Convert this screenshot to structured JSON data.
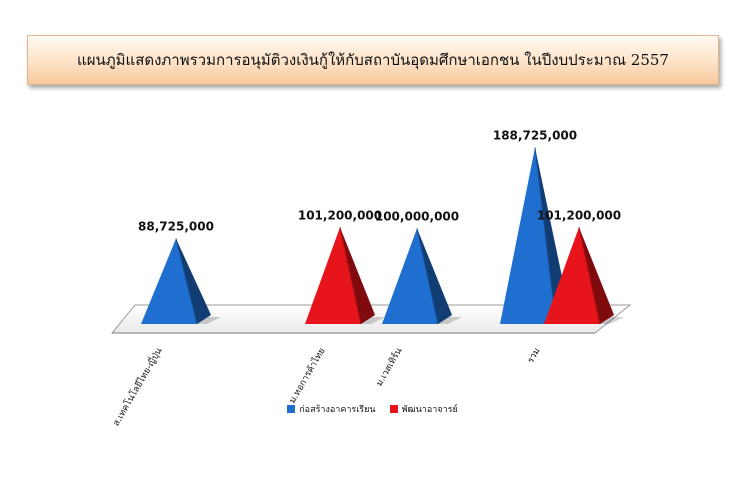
{
  "chart_data": {
    "type": "bar",
    "style": "3d-pyramid",
    "title": "แผนภูมิแสดงภาพรวมการอนุมัติวงเงินกู้ให้กับสถาบันอุดมศึกษาเอกชน ในปีงบประมาณ 2557",
    "categories": [
      "ส.เทคโนโลยีไทย-ญี่ปุ่น",
      "ม.หอการค้าไทย",
      "ม.เวสเทิร์น",
      "รวม"
    ],
    "series": [
      {
        "name": "ก่อสร้างอาคารเรียน",
        "color": "#1f6fd0",
        "values": [
          88725000,
          null,
          100000000,
          188725000
        ],
        "labels": [
          "88,725,000",
          "",
          "100,000,000",
          "188,725,000"
        ]
      },
      {
        "name": "พัฒนาอาจารย์",
        "color": "#e8141c",
        "values": [
          null,
          101200000,
          null,
          101200000
        ],
        "labels": [
          "",
          "101,200,000",
          "",
          "101,200,000"
        ]
      }
    ],
    "legend_position": "bottom",
    "grid": false
  }
}
